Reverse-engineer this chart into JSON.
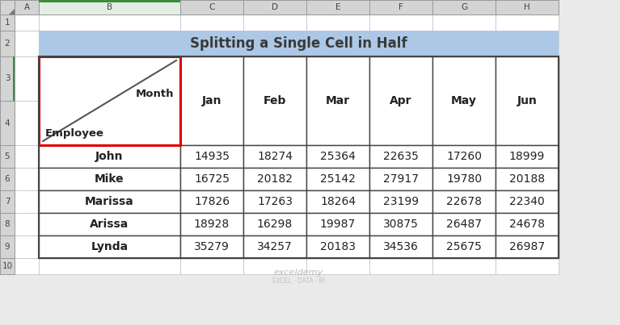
{
  "title": "Splitting a Single Cell in Half",
  "title_bg": "#ADC8E6",
  "header_row": [
    "Jan",
    "Feb",
    "Mar",
    "Apr",
    "May",
    "Jun"
  ],
  "split_cell_labels": [
    "Employee",
    "Month"
  ],
  "data_rows": [
    [
      "John",
      14935,
      18274,
      25364,
      22635,
      17260,
      18999
    ],
    [
      "Mike",
      16725,
      20182,
      25142,
      27917,
      19780,
      20188
    ],
    [
      "Marissa",
      17826,
      17263,
      18264,
      23199,
      22678,
      22340
    ],
    [
      "Arissa",
      18928,
      16298,
      19987,
      30875,
      26487,
      24678
    ],
    [
      "Lynda",
      35279,
      34257,
      20183,
      34536,
      25675,
      26987
    ]
  ],
  "bg_color": "#EAEAEA",
  "table_border_color": "#444444",
  "split_cell_border_color": "#DD0000",
  "col_letters": [
    "A",
    "B",
    "C",
    "D",
    "E",
    "F",
    "G",
    "H"
  ],
  "row_numbers": [
    "1",
    "2",
    "3",
    "4",
    "5",
    "6",
    "7",
    "8",
    "9",
    "10"
  ],
  "col_header_bg": "#D4D4D4",
  "row_header_bg": "#D4D4D4",
  "col_B_selected_bg": "#E2EEE2",
  "col_B_selected_top_color": "#3E8B3E",
  "cell_line_color": "#C0C0C0",
  "watermark_text": "exceldemy",
  "watermark_sub": "EXCEL · DATA · BI"
}
